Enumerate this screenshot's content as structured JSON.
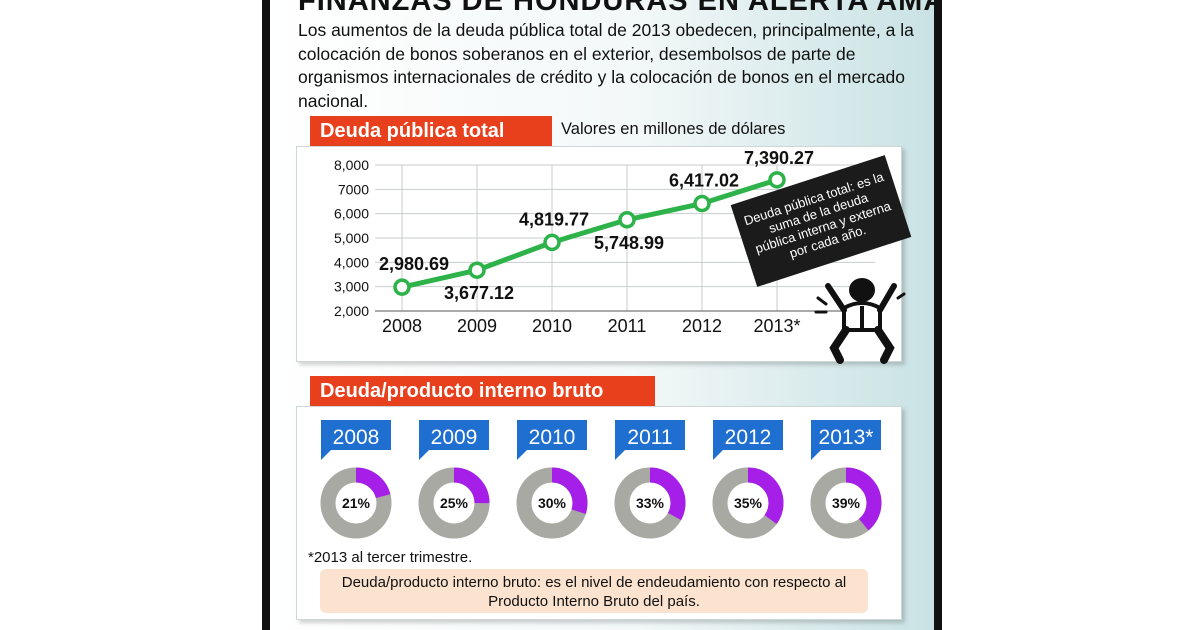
{
  "headline": "FINANZAS DE HONDURAS EN ALERTA AMARILLA",
  "intro": "Los aumentos de la deuda pública total de 2013 obedecen, principalmente, a la colocación de bonos soberanos en el exterior, desembolsos de parte de organismos internacionales de crédito y la colocación de bonos en el mercado nacional.",
  "colors": {
    "tab_red": "#e8401c",
    "line_green": "#2db34a",
    "year_tag_blue": "#1f6fd1",
    "donut_purple": "#a51fe8",
    "donut_gray": "#a7a9a2",
    "note_bg": "#fbe3cf"
  },
  "chart_data": [
    {
      "type": "line",
      "title": "Deuda pública total",
      "subtitle": "Valores en millones de dólares",
      "categories": [
        "2008",
        "2009",
        "2010",
        "2011",
        "2012",
        "2013*"
      ],
      "values": [
        2980.69,
        3677.12,
        4819.77,
        5748.99,
        6417.02,
        7390.27
      ],
      "value_labels": [
        "2,980.69",
        "3,677.12",
        "4,819.77",
        "5,748.99",
        "6,417.02",
        "7,390.27"
      ],
      "ylim": [
        2000,
        8000
      ],
      "y_ticks": [
        {
          "value": 2000,
          "label": "2,000"
        },
        {
          "value": 3000,
          "label": "3,000"
        },
        {
          "value": 4000,
          "label": "4,000"
        },
        {
          "value": 5000,
          "label": "5,000"
        },
        {
          "value": 6000,
          "label": "6,000"
        },
        {
          "value": 7000,
          "label": "7000"
        },
        {
          "value": 8000,
          "label": "8,000"
        }
      ],
      "grid": true,
      "annotation": "Deuda pública total: es la suma de la deuda pública interna y externa por cada año."
    },
    {
      "type": "pie",
      "title": "Deuda/producto interno bruto",
      "categories": [
        "2008",
        "2009",
        "2010",
        "2011",
        "2012",
        "2013*"
      ],
      "values": [
        21,
        25,
        30,
        33,
        35,
        39
      ],
      "value_labels": [
        "21%",
        "25%",
        "30%",
        "33%",
        "35%",
        "39%"
      ],
      "footnote": "*2013 al tercer trimestre.",
      "definition": "Deuda/producto interno bruto: es el nivel de endeudamiento con respecto al Producto Interno Bruto del país."
    }
  ]
}
